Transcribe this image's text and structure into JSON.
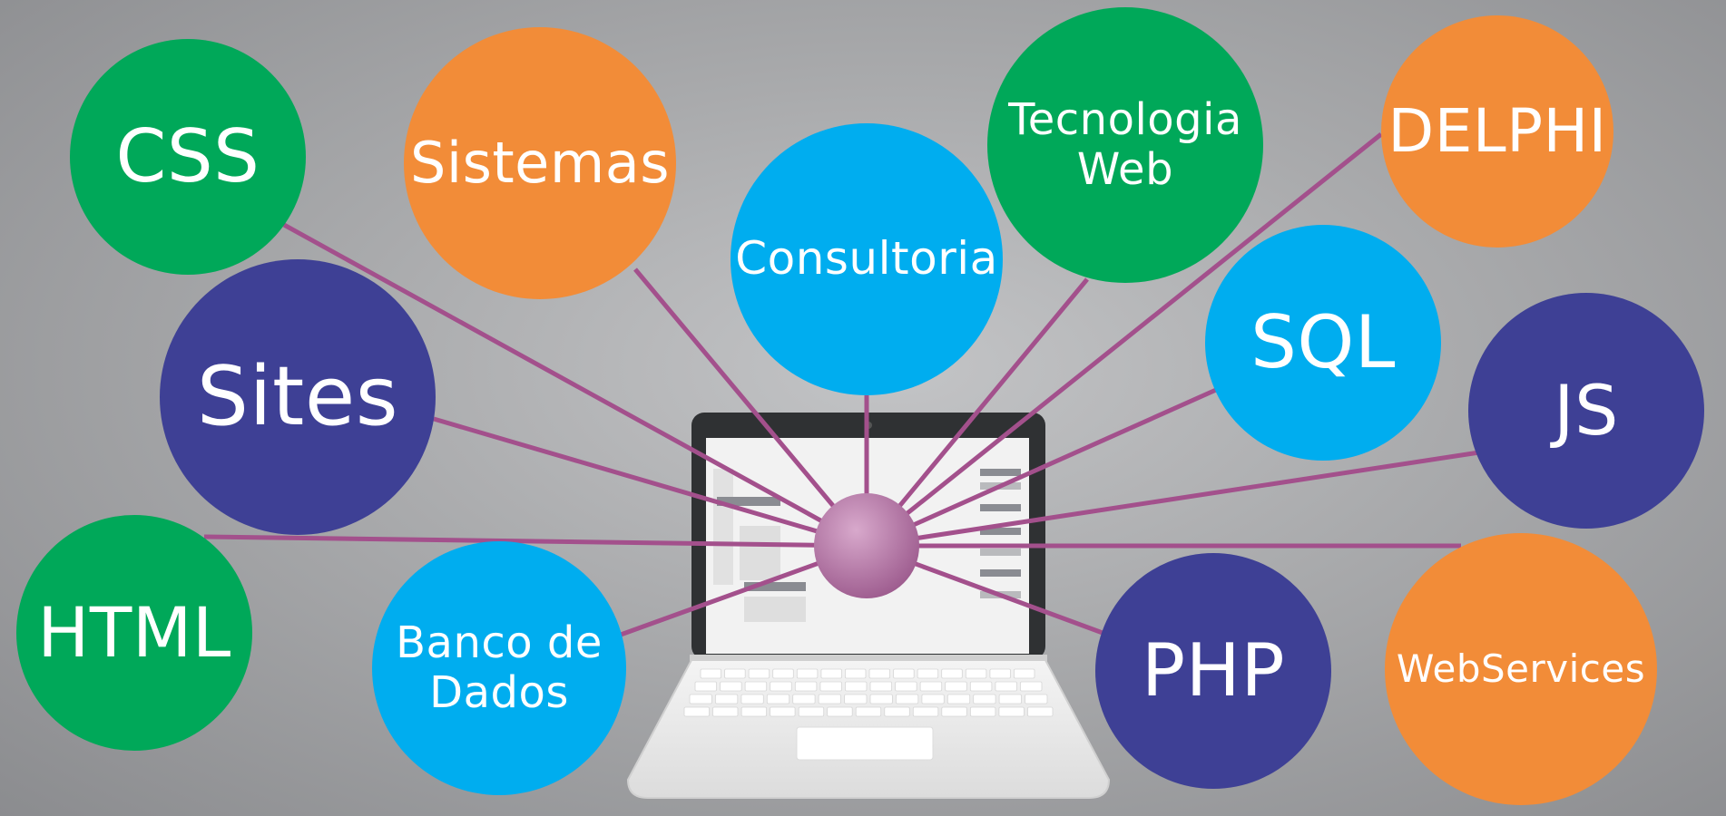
{
  "colors": {
    "green": "#00a859",
    "orange": "#f28c38",
    "light_blue": "#00adef",
    "navy": "#3e4095",
    "connector": "#a3508c",
    "hub": "#a86a9a",
    "background": "#a9aaac"
  },
  "hub": {
    "label": ""
  },
  "laptop": {
    "icon": "laptop-icon"
  },
  "nodes": [
    {
      "id": "css",
      "label": "CSS",
      "color": "green"
    },
    {
      "id": "sistemas",
      "label": "Sistemas",
      "color": "orange"
    },
    {
      "id": "consultoria",
      "label": "Consultoria",
      "color": "light_blue"
    },
    {
      "id": "tecnologia-web",
      "label": "Tecnologia Web",
      "color": "green"
    },
    {
      "id": "delphi",
      "label": "DELPHI",
      "color": "orange"
    },
    {
      "id": "sites",
      "label": "Sites",
      "color": "navy"
    },
    {
      "id": "sql",
      "label": "SQL",
      "color": "light_blue"
    },
    {
      "id": "js",
      "label": "JS",
      "color": "navy"
    },
    {
      "id": "html",
      "label": "HTML",
      "color": "green"
    },
    {
      "id": "banco-de-dados",
      "label": "Banco de Dados",
      "color": "light_blue"
    },
    {
      "id": "php",
      "label": "PHP",
      "color": "navy"
    },
    {
      "id": "webservices",
      "label": "WebServices",
      "color": "orange"
    }
  ]
}
